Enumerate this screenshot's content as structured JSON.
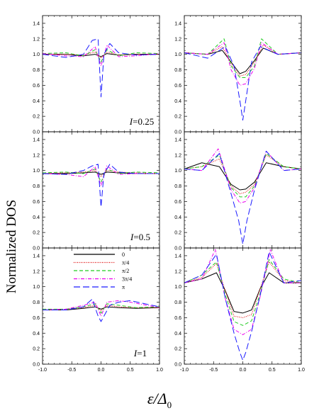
{
  "figure": {
    "ylabel": "Normalized DOS",
    "xlabel_symbol": "ε/Δ",
    "xlabel_subscript": "0"
  },
  "legend": {
    "entries": [
      {
        "label": "0",
        "color": "#000000",
        "style": "solid"
      },
      {
        "label": "π/4",
        "color": "#dd0000",
        "style": "dotted"
      },
      {
        "label": "π/2",
        "color": "#22cc22",
        "style": "dashed"
      },
      {
        "label": "3π/4",
        "color": "#ee00ee",
        "style": "dashdot"
      },
      {
        "label": "π",
        "color": "#1a1aff",
        "style": "longdash"
      }
    ]
  },
  "annotations": [
    {
      "var": "I",
      "text": "=0.25"
    },
    {
      "var": "I",
      "text": "=0.5"
    },
    {
      "var": "I",
      "text": "=1"
    }
  ],
  "chart_data": [
    {
      "type": "line",
      "panel": "row1-left",
      "xlim": [
        -1.0,
        1.0
      ],
      "ylim": [
        0.0,
        1.5
      ],
      "xticks": [
        "-1.0",
        "-0.5",
        "0.0",
        "0.5",
        "1.0"
      ],
      "yticks": [
        "0.0",
        "0.2",
        "0.4",
        "0.6",
        "0.8",
        "1.0",
        "1.2",
        "1.4"
      ],
      "series": [
        {
          "name": "0",
          "x": [
            -1.0,
            -0.6,
            -0.3,
            -0.1,
            0.0,
            0.1,
            0.3,
            0.6,
            1.0
          ],
          "y": [
            1.0,
            1.0,
            0.98,
            1.0,
            0.97,
            1.01,
            0.99,
            1.0,
            1.0
          ]
        },
        {
          "name": "π/4",
          "x": [
            -1.0,
            -0.6,
            -0.3,
            -0.1,
            0.0,
            0.1,
            0.3,
            0.6,
            1.0
          ],
          "y": [
            1.0,
            1.0,
            0.99,
            1.03,
            0.95,
            1.03,
            0.99,
            1.0,
            1.0
          ]
        },
        {
          "name": "π/2",
          "x": [
            -1.0,
            -0.6,
            -0.3,
            -0.1,
            0.0,
            0.1,
            0.3,
            0.6,
            1.0
          ],
          "y": [
            1.01,
            1.02,
            0.98,
            1.06,
            0.9,
            1.06,
            0.98,
            1.02,
            1.01
          ]
        },
        {
          "name": "3π/4",
          "x": [
            -1.0,
            -0.6,
            -0.3,
            -0.1,
            0.0,
            0.1,
            0.3,
            0.6,
            1.0
          ],
          "y": [
            1.01,
            0.98,
            0.97,
            1.1,
            0.85,
            1.12,
            0.97,
            0.98,
            1.01
          ]
        },
        {
          "name": "π",
          "x": [
            -1.0,
            -0.6,
            -0.3,
            -0.15,
            -0.05,
            0.0,
            0.05,
            0.15,
            0.3,
            0.6,
            1.0
          ],
          "y": [
            1.0,
            0.96,
            1.0,
            1.18,
            1.2,
            0.45,
            1.0,
            1.14,
            1.02,
            0.99,
            1.0
          ]
        }
      ]
    },
    {
      "type": "line",
      "panel": "row1-right",
      "xlim": [
        -1.0,
        1.0
      ],
      "ylim": [
        0.0,
        1.5
      ],
      "xticks": [
        "-1.0",
        "-0.5",
        "0.0",
        "0.5",
        "1.0"
      ],
      "yticks": [
        "0.0",
        "0.2",
        "0.4",
        "0.6",
        "0.8",
        "1.0",
        "1.2",
        "1.4"
      ],
      "series": [
        {
          "name": "0",
          "x": [
            -1.0,
            -0.6,
            -0.35,
            -0.2,
            -0.05,
            0.05,
            0.2,
            0.35,
            0.6,
            1.0
          ],
          "y": [
            1.02,
            1.0,
            1.05,
            0.9,
            0.75,
            0.78,
            0.92,
            1.08,
            1.0,
            1.02
          ]
        },
        {
          "name": "π/4",
          "x": [
            -1.0,
            -0.6,
            -0.35,
            -0.2,
            -0.05,
            0.05,
            0.2,
            0.35,
            0.6,
            1.0
          ],
          "y": [
            1.02,
            1.0,
            1.1,
            0.88,
            0.72,
            0.74,
            0.9,
            1.12,
            1.0,
            1.02
          ]
        },
        {
          "name": "π/2",
          "x": [
            -1.0,
            -0.6,
            -0.32,
            -0.2,
            -0.05,
            0.05,
            0.2,
            0.32,
            0.6,
            1.0
          ],
          "y": [
            1.02,
            1.0,
            1.2,
            0.85,
            0.7,
            0.7,
            0.85,
            1.2,
            1.0,
            1.02
          ]
        },
        {
          "name": "3π/4",
          "x": [
            -1.0,
            -0.6,
            -0.32,
            -0.2,
            -0.05,
            0.05,
            0.2,
            0.32,
            0.6,
            1.0
          ],
          "y": [
            1.02,
            1.0,
            1.15,
            0.8,
            0.6,
            0.62,
            0.82,
            1.15,
            1.0,
            1.02
          ]
        },
        {
          "name": "π",
          "x": [
            -1.0,
            -0.6,
            -0.3,
            -0.15,
            -0.05,
            0.0,
            0.05,
            0.15,
            0.3,
            0.6,
            1.0
          ],
          "y": [
            1.02,
            0.95,
            1.1,
            0.85,
            0.4,
            0.15,
            0.4,
            0.9,
            1.1,
            1.0,
            1.02
          ]
        }
      ]
    },
    {
      "type": "line",
      "panel": "row2-left",
      "xlim": [
        -1.0,
        1.0
      ],
      "ylim": [
        0.0,
        1.5
      ],
      "xticks": [
        "-1.0",
        "-0.5",
        "0.0",
        "0.5",
        "1.0"
      ],
      "yticks": [
        "0.0",
        "0.2",
        "0.4",
        "0.6",
        "0.8",
        "1.0",
        "1.2",
        "1.4"
      ],
      "series": [
        {
          "name": "0",
          "x": [
            -1.0,
            -0.6,
            -0.3,
            -0.1,
            0.0,
            0.1,
            0.3,
            0.6,
            1.0
          ],
          "y": [
            0.96,
            0.96,
            0.97,
            0.98,
            0.95,
            0.98,
            0.97,
            0.96,
            0.96
          ]
        },
        {
          "name": "π/4",
          "x": [
            -1.0,
            -0.6,
            -0.3,
            -0.1,
            0.0,
            0.1,
            0.3,
            0.6,
            1.0
          ],
          "y": [
            0.96,
            0.97,
            0.98,
            1.0,
            0.92,
            1.0,
            0.98,
            0.97,
            0.96
          ]
        },
        {
          "name": "π/2",
          "x": [
            -1.0,
            -0.6,
            -0.3,
            -0.1,
            0.0,
            0.1,
            0.3,
            0.6,
            1.0
          ],
          "y": [
            0.97,
            0.98,
            0.96,
            1.02,
            0.85,
            1.02,
            0.96,
            0.98,
            0.97
          ]
        },
        {
          "name": "3π/4",
          "x": [
            -1.0,
            -0.6,
            -0.3,
            -0.1,
            0.0,
            0.1,
            0.3,
            0.6,
            1.0
          ],
          "y": [
            0.96,
            0.95,
            0.92,
            1.05,
            0.8,
            1.06,
            0.95,
            0.96,
            0.96
          ]
        },
        {
          "name": "π",
          "x": [
            -1.0,
            -0.6,
            -0.3,
            -0.15,
            -0.05,
            0.0,
            0.05,
            0.15,
            0.3,
            0.6,
            1.0
          ],
          "y": [
            0.96,
            0.95,
            1.0,
            1.06,
            1.08,
            0.53,
            0.96,
            1.08,
            0.98,
            0.96,
            0.96
          ]
        }
      ]
    },
    {
      "type": "line",
      "panel": "row2-right",
      "xlim": [
        -1.0,
        1.0
      ],
      "ylim": [
        0.0,
        1.5
      ],
      "xticks": [
        "-1.0",
        "-0.5",
        "0.0",
        "0.5",
        "1.0"
      ],
      "yticks": [
        "0.0",
        "0.2",
        "0.4",
        "0.6",
        "0.8",
        "1.0",
        "1.2",
        "1.4"
      ],
      "series": [
        {
          "name": "0",
          "x": [
            -1.0,
            -0.7,
            -0.4,
            -0.2,
            -0.05,
            0.05,
            0.2,
            0.4,
            0.7,
            1.0
          ],
          "y": [
            1.02,
            1.1,
            1.05,
            0.82,
            0.75,
            0.76,
            0.85,
            1.1,
            1.05,
            1.02
          ]
        },
        {
          "name": "π/4",
          "x": [
            -1.0,
            -0.7,
            -0.4,
            -0.2,
            -0.05,
            0.05,
            0.2,
            0.4,
            0.7,
            1.0
          ],
          "y": [
            1.02,
            1.05,
            1.15,
            0.8,
            0.7,
            0.72,
            0.82,
            1.2,
            1.05,
            1.02
          ]
        },
        {
          "name": "π/2",
          "x": [
            -1.0,
            -0.7,
            -0.4,
            -0.2,
            -0.05,
            0.05,
            0.2,
            0.4,
            0.7,
            1.0
          ],
          "y": [
            1.02,
            1.05,
            1.2,
            0.78,
            0.66,
            0.66,
            0.8,
            1.22,
            1.05,
            1.02
          ]
        },
        {
          "name": "3π/4",
          "x": [
            -1.0,
            -0.7,
            -0.42,
            -0.2,
            -0.05,
            0.05,
            0.2,
            0.4,
            0.7,
            1.0
          ],
          "y": [
            1.02,
            1.0,
            1.28,
            0.75,
            0.58,
            0.6,
            0.78,
            1.25,
            1.0,
            1.02
          ]
        },
        {
          "name": "π",
          "x": [
            -1.0,
            -0.7,
            -0.4,
            -0.2,
            -0.07,
            0.0,
            0.07,
            0.2,
            0.4,
            0.7,
            1.0
          ],
          "y": [
            1.02,
            1.0,
            1.22,
            0.7,
            0.35,
            0.05,
            0.35,
            0.75,
            1.25,
            1.0,
            1.02
          ]
        }
      ]
    },
    {
      "type": "line",
      "panel": "row3-left",
      "xlim": [
        -1.0,
        1.0
      ],
      "ylim": [
        0.0,
        1.5
      ],
      "xticks": [
        "-1.0",
        "-0.5",
        "0.0",
        "0.5",
        "1.0"
      ],
      "yticks": [
        "0.0",
        "0.2",
        "0.4",
        "0.6",
        "0.8",
        "1.0",
        "1.2",
        "1.4"
      ],
      "series": [
        {
          "name": "0",
          "x": [
            -1.0,
            -0.6,
            -0.3,
            -0.1,
            0.0,
            0.1,
            0.3,
            0.6,
            1.0
          ],
          "y": [
            0.7,
            0.7,
            0.72,
            0.74,
            0.71,
            0.74,
            0.73,
            0.72,
            0.73
          ]
        },
        {
          "name": "π/4",
          "x": [
            -1.0,
            -0.6,
            -0.3,
            -0.1,
            0.0,
            0.1,
            0.3,
            0.6,
            1.0
          ],
          "y": [
            0.7,
            0.71,
            0.73,
            0.76,
            0.69,
            0.76,
            0.74,
            0.73,
            0.73
          ]
        },
        {
          "name": "π/2",
          "x": [
            -1.0,
            -0.6,
            -0.3,
            -0.1,
            0.0,
            0.1,
            0.3,
            0.6,
            1.0
          ],
          "y": [
            0.71,
            0.71,
            0.74,
            0.78,
            0.66,
            0.78,
            0.76,
            0.73,
            0.74
          ]
        },
        {
          "name": "3π/4",
          "x": [
            -1.0,
            -0.6,
            -0.3,
            -0.1,
            0.0,
            0.1,
            0.3,
            0.5,
            1.0
          ],
          "y": [
            0.7,
            0.71,
            0.76,
            0.8,
            0.62,
            0.8,
            0.82,
            0.8,
            0.73
          ]
        },
        {
          "name": "π",
          "x": [
            -1.0,
            -0.6,
            -0.3,
            -0.15,
            -0.05,
            0.0,
            0.05,
            0.15,
            0.3,
            0.5,
            1.0
          ],
          "y": [
            0.7,
            0.7,
            0.74,
            0.84,
            0.62,
            0.55,
            0.62,
            0.76,
            0.8,
            0.82,
            0.74
          ]
        }
      ]
    },
    {
      "type": "line",
      "panel": "row3-right",
      "xlim": [
        -1.0,
        1.0
      ],
      "ylim": [
        0.0,
        1.5
      ],
      "xticks": [
        "-1.0",
        "-0.5",
        "0.0",
        "0.5",
        "1.0"
      ],
      "yticks": [
        "0.0",
        "0.2",
        "0.4",
        "0.6",
        "0.8",
        "1.0",
        "1.2",
        "1.4"
      ],
      "series": [
        {
          "name": "0",
          "x": [
            -1.0,
            -0.7,
            -0.45,
            -0.3,
            -0.15,
            0.0,
            0.15,
            0.3,
            0.45,
            0.7,
            1.0
          ],
          "y": [
            1.05,
            1.1,
            1.18,
            0.95,
            0.68,
            0.66,
            0.7,
            0.98,
            1.18,
            1.05,
            1.05
          ]
        },
        {
          "name": "π/4",
          "x": [
            -1.0,
            -0.7,
            -0.45,
            -0.3,
            -0.15,
            0.0,
            0.15,
            0.3,
            0.45,
            0.7,
            1.0
          ],
          "y": [
            1.05,
            1.12,
            1.3,
            0.95,
            0.62,
            0.6,
            0.64,
            0.98,
            1.32,
            1.08,
            1.05
          ]
        },
        {
          "name": "π/2",
          "x": [
            -1.0,
            -0.7,
            -0.45,
            -0.3,
            -0.15,
            0.0,
            0.15,
            0.3,
            0.45,
            0.7,
            1.0
          ],
          "y": [
            1.05,
            1.15,
            1.32,
            0.9,
            0.55,
            0.5,
            0.56,
            0.92,
            1.35,
            1.1,
            1.05
          ]
        },
        {
          "name": "3π/4",
          "x": [
            -1.0,
            -0.7,
            -0.47,
            -0.3,
            -0.15,
            0.0,
            0.15,
            0.3,
            0.47,
            0.7,
            1.0
          ],
          "y": [
            1.05,
            1.1,
            1.48,
            0.85,
            0.45,
            0.38,
            0.45,
            0.88,
            1.48,
            1.05,
            1.05
          ]
        },
        {
          "name": "π",
          "x": [
            -1.0,
            -0.7,
            -0.45,
            -0.3,
            -0.15,
            -0.05,
            0.0,
            0.05,
            0.15,
            0.3,
            0.45,
            0.7,
            1.0
          ],
          "y": [
            1.05,
            1.15,
            1.42,
            0.85,
            0.4,
            0.15,
            0.05,
            0.15,
            0.42,
            0.9,
            1.45,
            1.05,
            1.08
          ]
        }
      ]
    }
  ]
}
